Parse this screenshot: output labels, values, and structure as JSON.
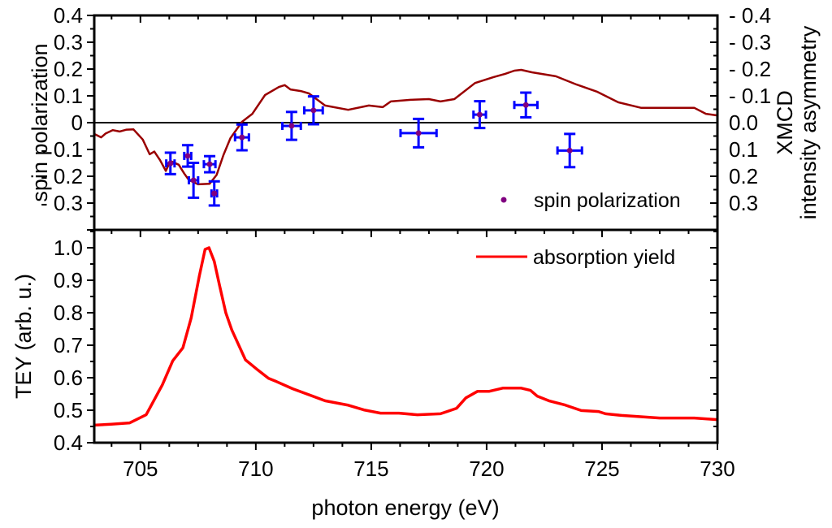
{
  "chart_data": [
    {
      "panel": "top",
      "type": "scatter",
      "xlabel": "",
      "ylabel": "spin polarization",
      "ylabel_right": [
        "XMCD",
        "intensity asymmetry"
      ],
      "xlim": [
        703,
        730
      ],
      "ylim": [
        -0.4,
        0.4
      ],
      "yticks": [
        -0.3,
        -0.2,
        -0.1,
        0,
        0.1,
        0.2,
        0.3,
        0.4
      ],
      "ytick_labels": [
        "- 0.3",
        "- 0.2",
        "- 0.1",
        "0",
        "0.1",
        "0.2",
        "0.3",
        "0.4"
      ],
      "yticks_right": [
        -0.4,
        -0.3,
        -0.2,
        -0.1,
        0.0,
        0.1,
        0.2,
        0.3
      ],
      "ytick_labels_right": [
        "- 0.4",
        "- 0.3",
        "- 0.2",
        "- 0.1",
        "0.0",
        "0.1",
        "0.2",
        "0.3"
      ],
      "right_axis_inverted": true,
      "zero_line": true,
      "grid": false,
      "legend": {
        "position": "bottom-right",
        "entries": [
          {
            "label": "spin polarization",
            "marker": "dot",
            "color": "#800080"
          }
        ]
      },
      "series": [
        {
          "name": "spin polarization",
          "kind": "points_with_errorbars",
          "marker_color": "#800080",
          "errorbar_color": "#0000ff",
          "points": [
            {
              "x": 706.3,
              "y": -0.152,
              "xerr": 0.18,
              "yerr": 0.04
            },
            {
              "x": 707.05,
              "y": -0.124,
              "xerr": 0.15,
              "yerr": 0.04
            },
            {
              "x": 707.3,
              "y": -0.215,
              "xerr": 0.2,
              "yerr": 0.065
            },
            {
              "x": 708.0,
              "y": -0.155,
              "xerr": 0.25,
              "yerr": 0.03
            },
            {
              "x": 708.2,
              "y": -0.264,
              "xerr": 0.12,
              "yerr": 0.045
            },
            {
              "x": 709.4,
              "y": -0.055,
              "xerr": 0.3,
              "yerr": 0.048
            },
            {
              "x": 711.55,
              "y": -0.012,
              "xerr": 0.4,
              "yerr": 0.052
            },
            {
              "x": 712.5,
              "y": 0.046,
              "xerr": 0.4,
              "yerr": 0.052
            },
            {
              "x": 717.05,
              "y": -0.039,
              "xerr": 0.78,
              "yerr": 0.053
            },
            {
              "x": 719.7,
              "y": 0.03,
              "xerr": 0.27,
              "yerr": 0.05
            },
            {
              "x": 721.7,
              "y": 0.066,
              "xerr": 0.5,
              "yerr": 0.046
            },
            {
              "x": 723.6,
              "y": -0.104,
              "xerr": 0.53,
              "yerr": 0.062
            }
          ]
        },
        {
          "name": "XMCD intensity asymmetry",
          "kind": "line",
          "color": "#990000",
          "x": [
            703.0,
            703.3,
            703.5,
            703.8,
            704.1,
            704.4,
            704.7,
            705.1,
            705.4,
            705.6,
            705.85,
            706.1,
            706.3,
            706.66,
            706.9,
            707.1,
            707.5,
            708.0,
            708.3,
            708.6,
            708.9,
            709.4,
            709.85,
            710.4,
            711.0,
            711.25,
            711.5,
            711.95,
            712.3,
            713.0,
            714.0,
            714.9,
            715.5,
            715.85,
            716.7,
            717.5,
            718.0,
            718.6,
            719.5,
            720.3,
            720.8,
            721.2,
            721.5,
            721.96,
            723.0,
            723.9,
            724.8,
            725.7,
            726.7,
            727.9,
            729.0,
            729.5,
            730.0
          ],
          "y": [
            -0.042,
            -0.055,
            -0.04,
            -0.028,
            -0.033,
            -0.026,
            -0.025,
            -0.063,
            -0.118,
            -0.108,
            -0.14,
            -0.18,
            -0.143,
            -0.157,
            -0.19,
            -0.214,
            -0.23,
            -0.228,
            -0.195,
            -0.12,
            -0.058,
            0.003,
            0.033,
            0.103,
            0.133,
            0.14,
            0.124,
            0.118,
            0.109,
            0.064,
            0.048,
            0.064,
            0.058,
            0.079,
            0.085,
            0.088,
            0.079,
            0.088,
            0.148,
            0.17,
            0.182,
            0.194,
            0.197,
            0.188,
            0.173,
            0.142,
            0.115,
            0.076,
            0.055,
            0.055,
            0.055,
            0.033,
            0.027
          ]
        }
      ]
    },
    {
      "panel": "bottom",
      "type": "line",
      "xlabel": "photon energy (eV)",
      "ylabel": "TEY (arb. u.)",
      "xlim": [
        703,
        730
      ],
      "ylim": [
        0.4,
        1.055
      ],
      "xticks": [
        705,
        710,
        715,
        720,
        725,
        730
      ],
      "xtick_labels": [
        "705",
        "710",
        "715",
        "720",
        "725",
        "730"
      ],
      "yticks": [
        0.4,
        0.5,
        0.6,
        0.7,
        0.8,
        0.9,
        1.0
      ],
      "ytick_labels": [
        "0.4",
        "0.5",
        "0.6",
        "0.7",
        "0.8",
        "0.9",
        "1.0"
      ],
      "grid": false,
      "legend": {
        "position": "top-right",
        "entries": [
          {
            "label": "absorption yield",
            "marker": "line",
            "color": "#ff0000"
          }
        ]
      },
      "series": [
        {
          "name": "absorption yield",
          "color": "#ff0000",
          "x": [
            703.0,
            703.73,
            704.54,
            705.25,
            705.95,
            706.4,
            706.84,
            707.2,
            707.55,
            707.8,
            707.97,
            708.2,
            708.43,
            708.7,
            708.96,
            709.55,
            710.1,
            710.55,
            710.9,
            711.6,
            713.0,
            713.97,
            714.68,
            715.4,
            716.2,
            717.0,
            718.0,
            718.7,
            719.1,
            719.6,
            720.1,
            720.7,
            721.5,
            721.9,
            722.2,
            722.7,
            723.4,
            724.1,
            724.85,
            725.15,
            725.85,
            727.5,
            729.0,
            730.0
          ],
          "y": [
            0.454,
            0.457,
            0.461,
            0.486,
            0.578,
            0.652,
            0.692,
            0.784,
            0.913,
            0.995,
            1.0,
            0.958,
            0.883,
            0.8,
            0.747,
            0.655,
            0.623,
            0.598,
            0.588,
            0.566,
            0.529,
            0.516,
            0.501,
            0.491,
            0.491,
            0.486,
            0.489,
            0.506,
            0.538,
            0.558,
            0.558,
            0.568,
            0.568,
            0.561,
            0.543,
            0.529,
            0.516,
            0.499,
            0.496,
            0.489,
            0.484,
            0.476,
            0.476,
            0.471
          ]
        }
      ]
    }
  ]
}
